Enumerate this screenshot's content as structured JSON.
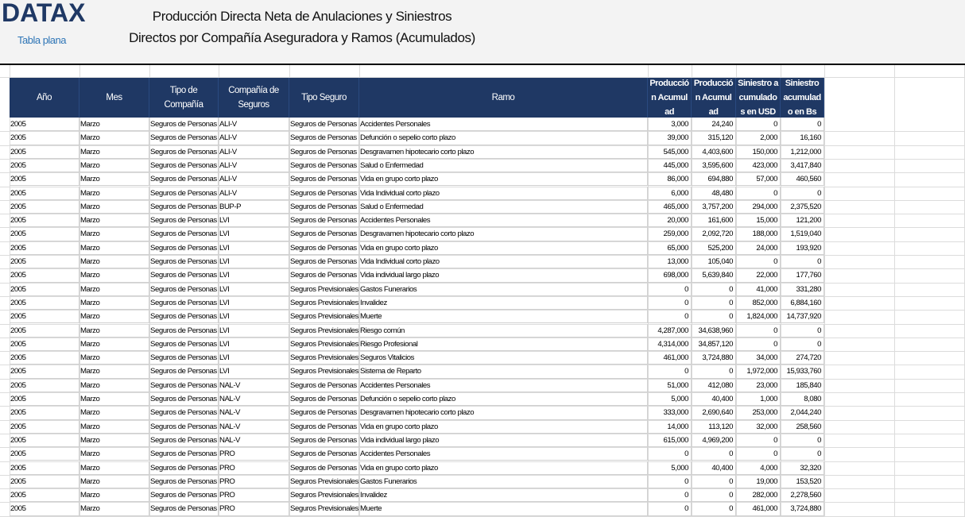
{
  "header": {
    "logo": "DATAX",
    "subtitle": "Tabla plana",
    "title_lines": [
      "Producción Directa Neta de Anulaciones y Siniestros",
      "Directos por  Compañía Aseguradora y Ramos (Acumulados)"
    ]
  },
  "table": {
    "columns": [
      "Año",
      "Mes",
      "Tipo de Compañía",
      "Compañía de Seguros",
      "Tipo Seguro",
      "Ramo",
      "Producción Acumulad",
      "Producción Acumulad",
      "Siniestro acumulados en USD",
      "Siniestro acumulado en Bs"
    ],
    "rows": [
      [
        "2005",
        "Marzo",
        "Seguros de Personas",
        "ALI-V",
        "Seguros de Personas",
        "Accidentes Personales",
        "3,000",
        "24,240",
        "0",
        "0"
      ],
      [
        "2005",
        "Marzo",
        "Seguros de Personas",
        "ALI-V",
        "Seguros de Personas",
        "Defunción o sepelio corto plazo",
        "39,000",
        "315,120",
        "2,000",
        "16,160"
      ],
      [
        "2005",
        "Marzo",
        "Seguros de Personas",
        "ALI-V",
        "Seguros de Personas",
        "Desgravamen hipotecario corto plazo",
        "545,000",
        "4,403,600",
        "150,000",
        "1,212,000"
      ],
      [
        "2005",
        "Marzo",
        "Seguros de Personas",
        "ALI-V",
        "Seguros de Personas",
        "Salud o Enfermedad",
        "445,000",
        "3,595,600",
        "423,000",
        "3,417,840"
      ],
      [
        "2005",
        "Marzo",
        "Seguros de Personas",
        "ALI-V",
        "Seguros de Personas",
        "Vida en grupo corto plazo",
        "86,000",
        "694,880",
        "57,000",
        "460,560"
      ],
      [
        "2005",
        "Marzo",
        "Seguros de Personas",
        "ALI-V",
        "Seguros de Personas",
        "Vida Individual corto plazo",
        "6,000",
        "48,480",
        "0",
        "0"
      ],
      [
        "2005",
        "Marzo",
        "Seguros de Personas",
        "BUP-P",
        "Seguros de Personas",
        "Salud o Enfermedad",
        "465,000",
        "3,757,200",
        "294,000",
        "2,375,520"
      ],
      [
        "2005",
        "Marzo",
        "Seguros de Personas",
        "LVI",
        "Seguros de Personas",
        "Accidentes Personales",
        "20,000",
        "161,600",
        "15,000",
        "121,200"
      ],
      [
        "2005",
        "Marzo",
        "Seguros de Personas",
        "LVI",
        "Seguros de Personas",
        "Desgravamen hipotecario corto plazo",
        "259,000",
        "2,092,720",
        "188,000",
        "1,519,040"
      ],
      [
        "2005",
        "Marzo",
        "Seguros de Personas",
        "LVI",
        "Seguros de Personas",
        "Vida en grupo corto plazo",
        "65,000",
        "525,200",
        "24,000",
        "193,920"
      ],
      [
        "2005",
        "Marzo",
        "Seguros de Personas",
        "LVI",
        "Seguros de Personas",
        "Vida Individual corto plazo",
        "13,000",
        "105,040",
        "0",
        "0"
      ],
      [
        "2005",
        "Marzo",
        "Seguros de Personas",
        "LVI",
        "Seguros de Personas",
        "Vida individual largo plazo",
        "698,000",
        "5,639,840",
        "22,000",
        "177,760"
      ],
      [
        "2005",
        "Marzo",
        "Seguros de Personas",
        "LVI",
        "Seguros Previsionales",
        "Gastos Funerarios",
        "0",
        "0",
        "41,000",
        "331,280"
      ],
      [
        "2005",
        "Marzo",
        "Seguros de Personas",
        "LVI",
        "Seguros Previsionales",
        "Invalidez",
        "0",
        "0",
        "852,000",
        "6,884,160"
      ],
      [
        "2005",
        "Marzo",
        "Seguros de Personas",
        "LVI",
        "Seguros Previsionales",
        "Muerte",
        "0",
        "0",
        "1,824,000",
        "14,737,920"
      ],
      [
        "2005",
        "Marzo",
        "Seguros de Personas",
        "LVI",
        "Seguros Previsionales",
        "Riesgo común",
        "4,287,000",
        "34,638,960",
        "0",
        "0"
      ],
      [
        "2005",
        "Marzo",
        "Seguros de Personas",
        "LVI",
        "Seguros Previsionales",
        "Riesgo Profesional",
        "4,314,000",
        "34,857,120",
        "0",
        "0"
      ],
      [
        "2005",
        "Marzo",
        "Seguros de Personas",
        "LVI",
        "Seguros Previsionales",
        "Seguros Vitalicios",
        "461,000",
        "3,724,880",
        "34,000",
        "274,720"
      ],
      [
        "2005",
        "Marzo",
        "Seguros de Personas",
        "LVI",
        "Seguros Previsionales",
        "Sistema de Reparto",
        "0",
        "0",
        "1,972,000",
        "15,933,760"
      ],
      [
        "2005",
        "Marzo",
        "Seguros de Personas",
        "NAL-V",
        "Seguros de Personas",
        "Accidentes Personales",
        "51,000",
        "412,080",
        "23,000",
        "185,840"
      ],
      [
        "2005",
        "Marzo",
        "Seguros de Personas",
        "NAL-V",
        "Seguros de Personas",
        "Defunción o sepelio corto plazo",
        "5,000",
        "40,400",
        "1,000",
        "8,080"
      ],
      [
        "2005",
        "Marzo",
        "Seguros de Personas",
        "NAL-V",
        "Seguros de Personas",
        "Desgravamen hipotecario corto plazo",
        "333,000",
        "2,690,640",
        "253,000",
        "2,044,240"
      ],
      [
        "2005",
        "Marzo",
        "Seguros de Personas",
        "NAL-V",
        "Seguros de Personas",
        "Vida en grupo corto plazo",
        "14,000",
        "113,120",
        "32,000",
        "258,560"
      ],
      [
        "2005",
        "Marzo",
        "Seguros de Personas",
        "NAL-V",
        "Seguros de Personas",
        "Vida individual largo plazo",
        "615,000",
        "4,969,200",
        "0",
        "0"
      ],
      [
        "2005",
        "Marzo",
        "Seguros de Personas",
        "PRO",
        "Seguros de Personas",
        "Accidentes Personales",
        "0",
        "0",
        "0",
        "0"
      ],
      [
        "2005",
        "Marzo",
        "Seguros de Personas",
        "PRO",
        "Seguros de Personas",
        "Vida en grupo corto plazo",
        "5,000",
        "40,400",
        "4,000",
        "32,320"
      ],
      [
        "2005",
        "Marzo",
        "Seguros de Personas",
        "PRO",
        "Seguros Previsionales",
        "Gastos Funerarios",
        "0",
        "0",
        "19,000",
        "153,520"
      ],
      [
        "2005",
        "Marzo",
        "Seguros de Personas",
        "PRO",
        "Seguros Previsionales",
        "Invalidez",
        "0",
        "0",
        "282,000",
        "2,278,560"
      ],
      [
        "2005",
        "Marzo",
        "Seguros de Personas",
        "PRO",
        "Seguros Previsionales",
        "Muerte",
        "0",
        "0",
        "461,000",
        "3,724,880"
      ]
    ]
  }
}
